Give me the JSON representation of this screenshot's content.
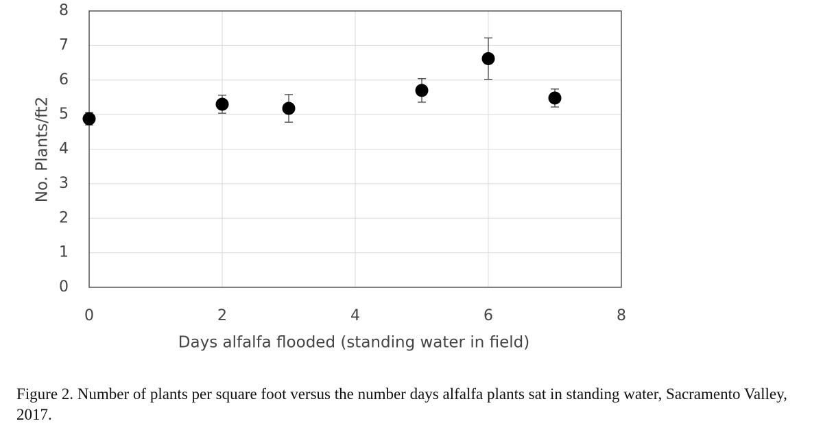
{
  "chart_data": {
    "type": "scatter",
    "xlabel": "Days alfalfa flooded (standing water in field)",
    "ylabel": "No. Plants/ft2",
    "caption": "Figure 2. Number of plants per square foot versus the number days alfalfa plants sat in standing water, Sacramento Valley, 2017.",
    "x": [
      0,
      2,
      3,
      5,
      6,
      7
    ],
    "series": [
      {
        "color": "#000000",
        "values": [
          4.88,
          5.3,
          5.18,
          5.7,
          6.62,
          5.48
        ],
        "errors": [
          0.18,
          0.26,
          0.4,
          0.34,
          0.6,
          0.26
        ]
      }
    ],
    "xlim": [
      0,
      8
    ],
    "xticks": [
      0,
      2,
      4,
      6,
      8
    ],
    "ylim": [
      0,
      8
    ],
    "yticks": [
      0,
      1,
      2,
      3,
      4,
      5,
      6,
      7,
      8
    ],
    "grid": true
  }
}
